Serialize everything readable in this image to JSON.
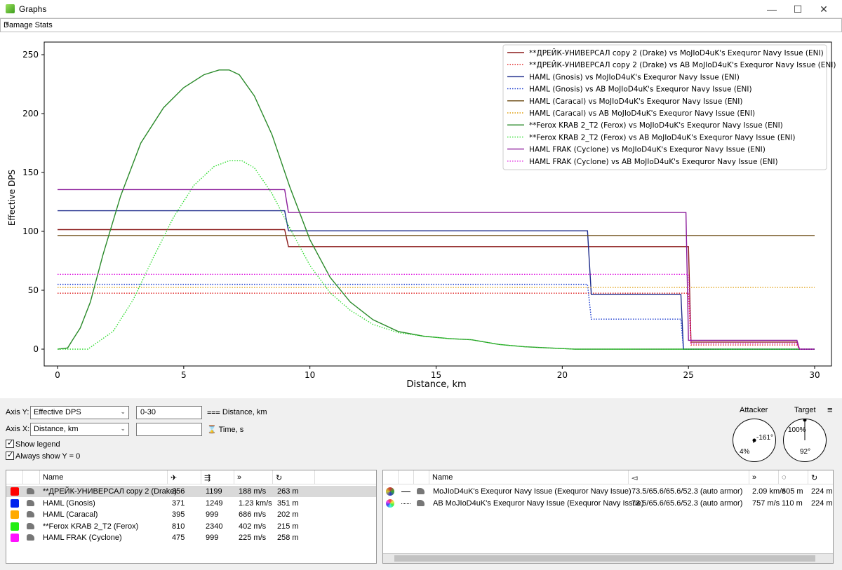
{
  "window": {
    "title": "Graphs",
    "minimize": "—",
    "maximize": "☐",
    "close": "✕"
  },
  "graph_type": {
    "selected": "Damage Stats"
  },
  "chart_data": {
    "type": "line",
    "xlabel": "Distance, km",
    "ylabel": "Effective DPS",
    "xlim": [
      0,
      30
    ],
    "ylim": [
      0,
      260
    ],
    "x_ticks": [
      0,
      5,
      10,
      15,
      20,
      25,
      30
    ],
    "y_ticks": [
      0,
      50,
      100,
      150,
      200,
      250
    ],
    "grid": true,
    "legend_position": "top-right",
    "series": [
      {
        "name": "**ДРЕЙК-УНИВЕРСАЛ copy 2 (Drake) vs MoJIoD4uK's Exequror Navy Issue (ENI)",
        "color": "#8b1a1a",
        "style": "solid",
        "x": [
          0,
          9.0,
          9.15,
          25.0,
          25.1,
          29.3,
          29.4,
          30
        ],
        "y": [
          101.5,
          101.5,
          87,
          87,
          6,
          6,
          0,
          0
        ]
      },
      {
        "name": "**ДРЕЙК-УНИВЕРСАЛ copy 2 (Drake) vs AB MoJIoD4uK's Exequror Navy Issue  (ENI)",
        "color": "#e02020",
        "style": "dotted",
        "x": [
          0,
          25.0,
          25.1,
          29.3,
          29.4,
          30
        ],
        "y": [
          47.5,
          47.5,
          3.5,
          3.5,
          0,
          0
        ]
      },
      {
        "name": "HAML (Gnosis) vs MoJIoD4uK's Exequror Navy Issue (ENI)",
        "color": "#1c2a8a",
        "style": "solid",
        "x": [
          0,
          9.0,
          9.15,
          21.0,
          21.15,
          24.7,
          24.8,
          30
        ],
        "y": [
          117.5,
          117.5,
          100.5,
          100.5,
          46.5,
          46.5,
          0,
          0
        ]
      },
      {
        "name": "HAML (Gnosis) vs AB MoJIoD4uK's Exequror Navy Issue  (ENI)",
        "color": "#1f3fd0",
        "style": "dotted",
        "x": [
          0,
          21.0,
          21.15,
          24.7,
          24.8,
          30
        ],
        "y": [
          55,
          55,
          25.5,
          25.5,
          0,
          0
        ]
      },
      {
        "name": "HAML (Caracal) vs MoJIoD4uK's Exequror Navy Issue (ENI)",
        "color": "#6b4a12",
        "style": "solid",
        "x": [
          0,
          30
        ],
        "y": [
          96.5,
          96.5
        ]
      },
      {
        "name": "HAML (Caracal) vs AB MoJIoD4uK's Exequror Navy Issue  (ENI)",
        "color": "#e0a010",
        "style": "dotted",
        "x": [
          0,
          30
        ],
        "y": [
          52.5,
          52.5
        ]
      },
      {
        "name": "**Ferox KRAB 2_T2 (Ferox) vs MoJIoD4uK's Exequror Navy Issue (ENI)",
        "color": "#2a8a2a",
        "style": "solid",
        "x": [
          0,
          0.4,
          0.6,
          0.9,
          1.3,
          1.8,
          2.5,
          3.3,
          4.2,
          5.0,
          5.8,
          6.4,
          6.8,
          7.2,
          7.8,
          8.5,
          9.2,
          10.0,
          10.8,
          11.6,
          12.5,
          13.5,
          14.5,
          15.5,
          16.4,
          17.5,
          18.5,
          19.5,
          20.5,
          30
        ],
        "y": [
          0,
          1,
          8,
          18,
          40,
          80,
          130,
          175,
          205,
          222,
          233,
          237,
          237,
          233,
          215,
          182,
          138,
          93,
          61,
          40,
          25,
          15,
          11,
          9,
          8,
          4,
          2,
          1,
          0,
          0
        ]
      },
      {
        "name": "**Ferox KRAB 2_T2 (Ferox) vs AB MoJIoD4uK's Exequror Navy Issue  (ENI)",
        "color": "#33dd33",
        "style": "dotted",
        "x": [
          0,
          1.2,
          1.6,
          2.2,
          3.0,
          3.8,
          4.6,
          5.4,
          6.2,
          6.8,
          7.3,
          7.8,
          8.5,
          9.2,
          10.0,
          10.8,
          11.6,
          12.5,
          13.5,
          14.5,
          15.5,
          16.4,
          17.5,
          18.5,
          19.5,
          20.5,
          30
        ],
        "y": [
          0,
          0,
          6,
          15,
          42,
          78,
          112,
          139,
          155,
          160,
          160,
          154,
          132,
          103,
          71,
          48,
          33,
          21,
          14,
          11,
          9,
          8,
          4,
          2,
          1,
          0,
          0
        ]
      },
      {
        "name": "HAML FRAK (Cyclone) vs MoJIoD4uK's Exequror Navy Issue (ENI)",
        "color": "#8a1a9a",
        "style": "solid",
        "x": [
          0,
          9.0,
          9.15,
          24.9,
          25.0,
          29.3,
          29.4,
          30
        ],
        "y": [
          135.5,
          135.5,
          116,
          116,
          7.5,
          7.5,
          0,
          0
        ]
      },
      {
        "name": "HAML FRAK (Cyclone) vs AB MoJIoD4uK's Exequror Navy Issue  (ENI)",
        "color": "#e020e0",
        "style": "dotted",
        "x": [
          0,
          25.0,
          25.1,
          29.3,
          29.4,
          30
        ],
        "y": [
          63.5,
          63.5,
          5,
          5,
          0,
          0
        ]
      }
    ]
  },
  "controls": {
    "axis_y_label": "Axis Y:",
    "axis_y_value": "Effective DPS",
    "axis_y_range": "0-30",
    "axis_y_range_unit": "Distance, km",
    "axis_x_label": "Axis X:",
    "axis_x_value": "Distance, km",
    "axis_x_range": "",
    "axis_x_range_unit": "Time, s",
    "show_legend": "Show legend",
    "always_show_zero": "Always show Y = 0"
  },
  "vectors": {
    "attacker_label": "Attacker",
    "target_label": "Target",
    "attacker_angle": "-161°",
    "attacker_speed": "4%",
    "target_speed": "100%",
    "target_angle": "92°",
    "menu_icon": "≡"
  },
  "fits_table": {
    "headers": [
      "Name"
    ],
    "rows": [
      {
        "color": "#ff0000",
        "name": "**ДРЕЙК-УНИВЕРСАЛ copy 2 (Drake)",
        "c1": "356",
        "c2": "1199",
        "c3": "188 m/s",
        "c4": "263 m"
      },
      {
        "color": "#0022ee",
        "name": "HAML (Gnosis)",
        "c1": "371",
        "c2": "1249",
        "c3": "1.23 km/s",
        "c4": "351 m"
      },
      {
        "color": "#ffaa00",
        "name": "HAML (Caracal)",
        "c1": "395",
        "c2": "999",
        "c3": "686 m/s",
        "c4": "202 m"
      },
      {
        "color": "#22ee11",
        "name": "**Ferox KRAB 2_T2 (Ferox)",
        "c1": "810",
        "c2": "2340",
        "c3": "402 m/s",
        "c4": "215 m"
      },
      {
        "color": "#ff11ff",
        "name": "HAML FRAK (Cyclone)",
        "c1": "475",
        "c2": "999",
        "c3": "225 m/s",
        "c4": "258 m"
      }
    ]
  },
  "targets_table": {
    "headers": [
      "Name"
    ],
    "rows": [
      {
        "name": "MoJIoD4uK's Exequror Navy Issue (Exequror Navy Issue)",
        "resists": "73.5/65.6/65.6/52.3 (auto armor)",
        "speed": "2.09 km/s",
        "sig": "605 m",
        "radius": "224 m"
      },
      {
        "name": "AB MoJIoD4uK's Exequror Navy Issue  (Exequror Navy Issue)",
        "resists": "73.5/65.6/65.6/52.3 (auto armor)",
        "speed": "757 m/s",
        "sig": "110 m",
        "radius": "224 m"
      }
    ]
  }
}
